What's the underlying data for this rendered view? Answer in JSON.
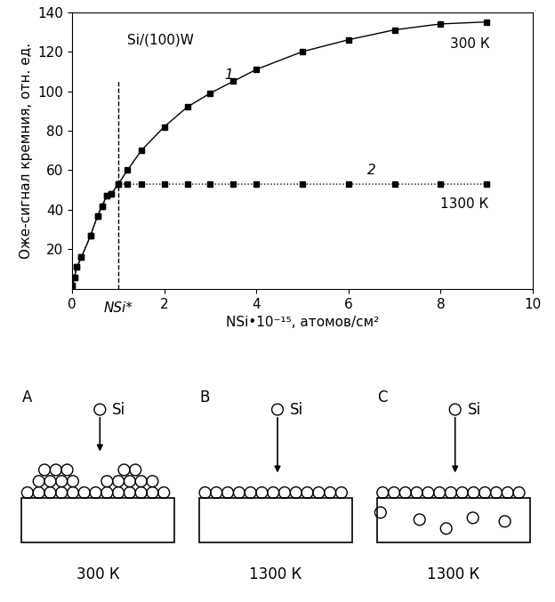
{
  "chart_data": {
    "type": "line",
    "x_label": "NSi•10⁻¹⁵, атомов/см²",
    "y_label": "Оже-сигнал кремния, отн. ед.",
    "xlim": [
      0,
      10
    ],
    "ylim": [
      0,
      140
    ],
    "xticks": [
      0,
      2,
      4,
      6,
      8,
      10
    ],
    "yticks": [
      20,
      40,
      60,
      80,
      100,
      120,
      140
    ],
    "grid": false,
    "critical_coverage": {
      "x": 1.0,
      "label": "NSi*"
    },
    "annotations": [
      {
        "x": 1.2,
        "y": 126,
        "text": "Si/(100)W"
      },
      {
        "x": 3.3,
        "y": 108,
        "text": "1"
      },
      {
        "x": 6.4,
        "y": 60,
        "text": "2"
      },
      {
        "x": 8.2,
        "y": 124,
        "text": "300 К"
      },
      {
        "x": 8.0,
        "y": 43,
        "text": "1300 К"
      }
    ],
    "series": [
      {
        "name": "1",
        "color": "#000000",
        "marker": "s",
        "line_style": "solid",
        "x": [
          0,
          0.05,
          0.1,
          0.2,
          0.4,
          0.55,
          0.65,
          0.75,
          0.85,
          1.0,
          1.2,
          1.5,
          2,
          2.5,
          3,
          3.5,
          4,
          5,
          6,
          7,
          8,
          9
        ],
        "values": [
          2,
          6,
          11,
          16,
          27,
          37,
          42,
          47,
          48,
          53,
          60,
          70,
          82,
          92,
          99,
          105,
          111,
          120,
          126,
          131,
          134,
          135
        ]
      },
      {
        "name": "2",
        "color": "#000000",
        "marker": "s",
        "line_style": "dotted",
        "x": [
          0,
          0.05,
          0.1,
          0.2,
          0.4,
          0.55,
          0.65,
          0.75,
          0.85,
          1.0,
          1.2,
          1.5,
          2,
          2.5,
          3,
          3.5,
          4,
          5,
          6,
          7,
          8,
          9
        ],
        "values": [
          2,
          6,
          11,
          16,
          27,
          37,
          42,
          47,
          48,
          53,
          53,
          53,
          53,
          53,
          53,
          53,
          53,
          53,
          53,
          53,
          53,
          53
        ]
      }
    ]
  },
  "diagram": {
    "panels": [
      {
        "label": "A",
        "adatom": "Si",
        "temperature": "300 К"
      },
      {
        "label": "B",
        "adatom": "Si",
        "temperature": "1300 К"
      },
      {
        "label": "C",
        "adatom": "Si",
        "temperature": "1300 К"
      }
    ]
  }
}
